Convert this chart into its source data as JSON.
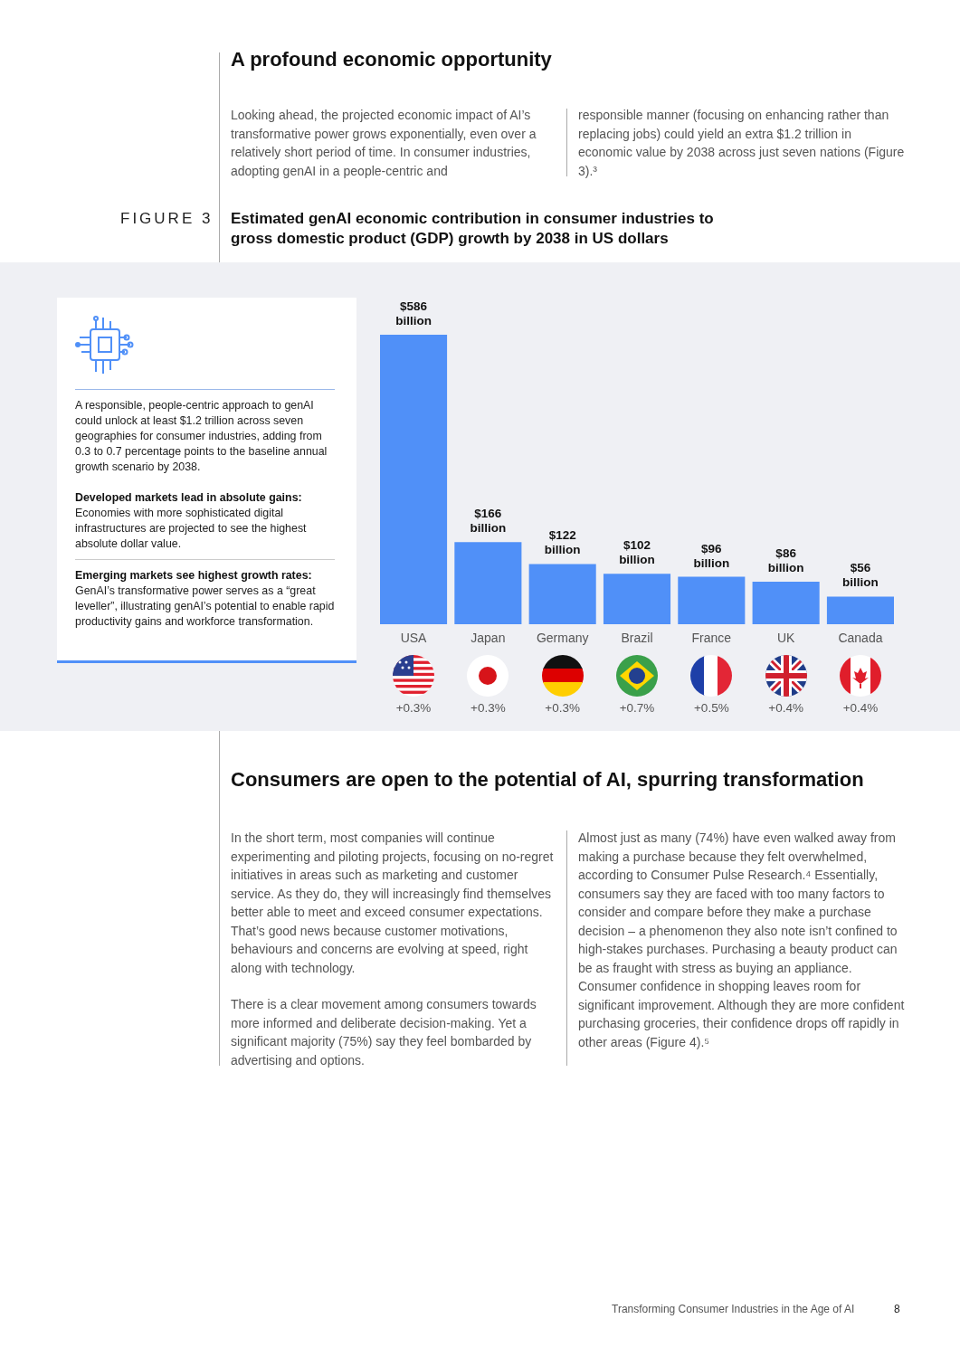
{
  "chart_data": {
    "type": "bar",
    "title": "Estimated genAI economic contribution in consumer industries to gross domestic product (GDP) growth by 2038 in US dollars",
    "categories": [
      "USA",
      "Japan",
      "Germany",
      "Brazil",
      "France",
      "UK",
      "Canada"
    ],
    "values": [
      586,
      166,
      122,
      102,
      96,
      86,
      56
    ],
    "color": "#5090f8",
    "value_labels": [
      "$586 billion",
      "$166 billion",
      "$122 billion",
      "$102 billion",
      "$96 billion",
      "$86 billion",
      "$56 billion"
    ],
    "annotations": [
      "A profound economic opportunity",
      "Looking ahead, the projected economic impact of AI’s transformative power grows exponentially, even over a relatively short period of time. In consumer industries, adopting genAI in a people-centric and",
      "responsible manner (focusing on enhancing rather than replacing jobs) could yield an extra $1.2 trillion in economic value by 2038 across just seven nations (Figure 3).³",
      "FIGURE 3",
      "A responsible, people-centric approach to genAI could unlock at least $1.2 trillion across seven geographies for consumer industries, adding from 0.3 to 0.7 percentage points to the baseline annual growth scenario by 2038.",
      "Developed markets lead in absolute gains:",
      "Economies with more sophisticated digital infrastructures are projected to see the highest absolute dollar value.",
      "Emerging markets see highest growth rates:",
      "GenAI’s transformative power serves as a “great leveller”, illustrating genAI’s potential to enable rapid productivity gains and workforce transformation.",
      "Consumers are open to the potential of AI, spurring transformation",
      "In the short term, most companies will continue experimenting and piloting projects, focusing on no-regret initiatives in areas such as marketing and customer service. As they do, they will increasingly find themselves better able to meet and exceed consumer expectations. That’s good news because customer motivations, behaviours and concerns are evolving at speed, right along with technology.",
      "There is a clear movement among consumers towards more informed and deliberate decision-making. Yet a significant majority (75%) say they feel bombarded by advertising and options.",
      "Almost just as many (74%) have even walked away from making a purchase because they felt overwhelmed, according to Consumer Pulse Research.⁴ Essentially, consumers say they are faced with too many factors to consider and compare before they make a purchase decision – a phenomenon they also note isn’t confined to high-stakes purchases. Purchasing a beauty product can be as fraught with stress as buying an appliance. Consumer confidence in shopping leaves room for significant improvement. Although they are more confident purchasing groceries, their confidence drops off rapidly in other areas (Figure 4).⁵",
      "Transforming Consumer Industries in the Age of AI",
      "8",
      "+0.3%",
      "+0.3%",
      "+0.3%",
      "+0.7%",
      "+0.5%",
      "+0.4%",
      "+0.4%"
    ]
  }
}
